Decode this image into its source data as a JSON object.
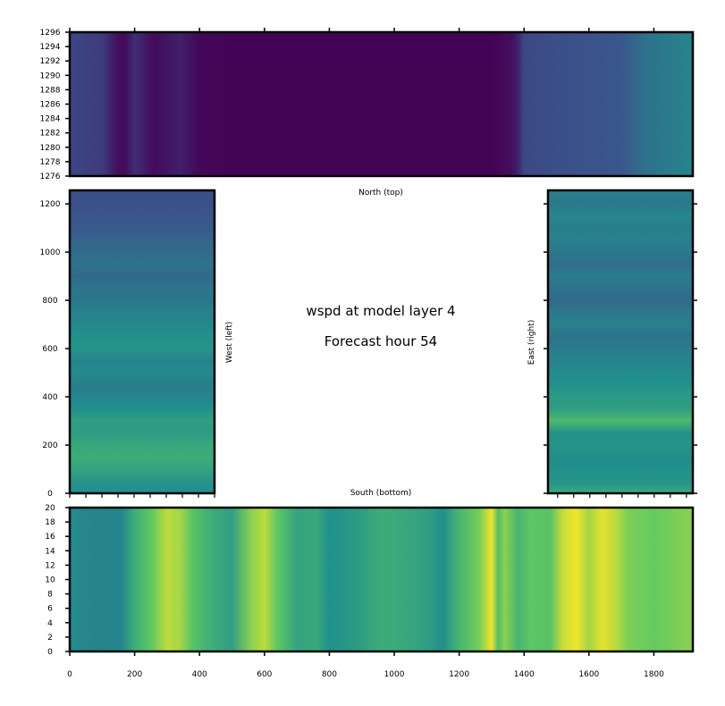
{
  "chart_data": {
    "type": "heatmap",
    "title_line1": "wspd at model layer 4",
    "title_line2": "Forecast hour 54",
    "colormap": [
      "#440154",
      "#3b528b",
      "#21918c",
      "#5ec962",
      "#fde725"
    ],
    "panels": [
      {
        "id": "top",
        "label": "North (top)",
        "xlim": [
          0,
          1920
        ],
        "ylim": [
          1276,
          1296
        ],
        "y_ticks": [
          1276,
          1278,
          1280,
          1282,
          1284,
          1286,
          1288,
          1290,
          1292,
          1294,
          1296
        ],
        "orientation": "columns",
        "profile_x": [
          0,
          40,
          100,
          150,
          170,
          200,
          260,
          300,
          340,
          400,
          500,
          600,
          700,
          800,
          960,
          1100,
          1200,
          1300,
          1360,
          1380,
          1400,
          1500,
          1600,
          1700,
          1780,
          1920
        ],
        "profile_v": [
          0.22,
          0.2,
          0.18,
          0.04,
          0.03,
          0.14,
          0.03,
          0.06,
          0.1,
          0.02,
          0.01,
          0.01,
          0.01,
          0.01,
          0.01,
          0.01,
          0.01,
          0.01,
          0.04,
          0.1,
          0.22,
          0.24,
          0.25,
          0.27,
          0.38,
          0.45
        ]
      },
      {
        "id": "left",
        "label": "West (left)",
        "xlim": [
          0,
          450
        ],
        "ylim": [
          0,
          1256
        ],
        "y_ticks": [
          0,
          200,
          400,
          600,
          800,
          1000,
          1200
        ],
        "orientation": "rows",
        "profile_y": [
          0,
          50,
          100,
          150,
          200,
          250,
          300,
          350,
          400,
          450,
          500,
          550,
          600,
          650,
          700,
          750,
          800,
          850,
          900,
          950,
          1000,
          1050,
          1100,
          1150,
          1200,
          1256
        ],
        "profile_v": [
          0.48,
          0.52,
          0.58,
          0.62,
          0.6,
          0.55,
          0.56,
          0.5,
          0.45,
          0.42,
          0.48,
          0.44,
          0.52,
          0.5,
          0.46,
          0.44,
          0.4,
          0.38,
          0.34,
          0.38,
          0.35,
          0.32,
          0.28,
          0.26,
          0.24,
          0.24
        ]
      },
      {
        "id": "right",
        "label": "East (right)",
        "xlim": [
          1470,
          1920
        ],
        "ylim": [
          0,
          1256
        ],
        "y_ticks": [
          0,
          200,
          400,
          600,
          800,
          1000,
          1200
        ],
        "orientation": "rows",
        "profile_y": [
          0,
          40,
          100,
          150,
          200,
          250,
          300,
          350,
          400,
          450,
          500,
          550,
          600,
          650,
          700,
          750,
          800,
          850,
          900,
          950,
          1000,
          1050,
          1100,
          1150,
          1200,
          1256
        ],
        "profile_v": [
          0.62,
          0.52,
          0.5,
          0.48,
          0.52,
          0.5,
          0.68,
          0.56,
          0.54,
          0.5,
          0.48,
          0.44,
          0.42,
          0.38,
          0.44,
          0.4,
          0.34,
          0.38,
          0.42,
          0.36,
          0.4,
          0.44,
          0.42,
          0.46,
          0.4,
          0.44
        ]
      },
      {
        "id": "bottom",
        "label": "South (bottom)",
        "xlim": [
          0,
          1920
        ],
        "ylim": [
          0,
          20
        ],
        "y_ticks": [
          0,
          2,
          4,
          6,
          8,
          10,
          12,
          14,
          16,
          18,
          20
        ],
        "x_ticks": [
          0,
          200,
          400,
          600,
          800,
          1000,
          1200,
          1400,
          1600,
          1800
        ],
        "orientation": "columns",
        "profile_x": [
          0,
          80,
          160,
          200,
          250,
          300,
          340,
          380,
          440,
          500,
          560,
          600,
          640,
          700,
          760,
          800,
          880,
          960,
          1040,
          1100,
          1150,
          1200,
          1260,
          1300,
          1320,
          1340,
          1380,
          1420,
          1480,
          1520,
          1560,
          1600,
          1640,
          1680,
          1720,
          1800,
          1920
        ],
        "profile_v": [
          0.48,
          0.44,
          0.46,
          0.62,
          0.74,
          0.9,
          0.86,
          0.72,
          0.62,
          0.56,
          0.82,
          0.9,
          0.74,
          0.58,
          0.6,
          0.5,
          0.54,
          0.62,
          0.6,
          0.56,
          0.5,
          0.66,
          0.78,
          0.98,
          0.7,
          0.82,
          0.66,
          0.74,
          0.72,
          0.92,
          0.98,
          0.86,
          0.96,
          0.9,
          0.8,
          0.76,
          0.82
        ]
      }
    ]
  }
}
